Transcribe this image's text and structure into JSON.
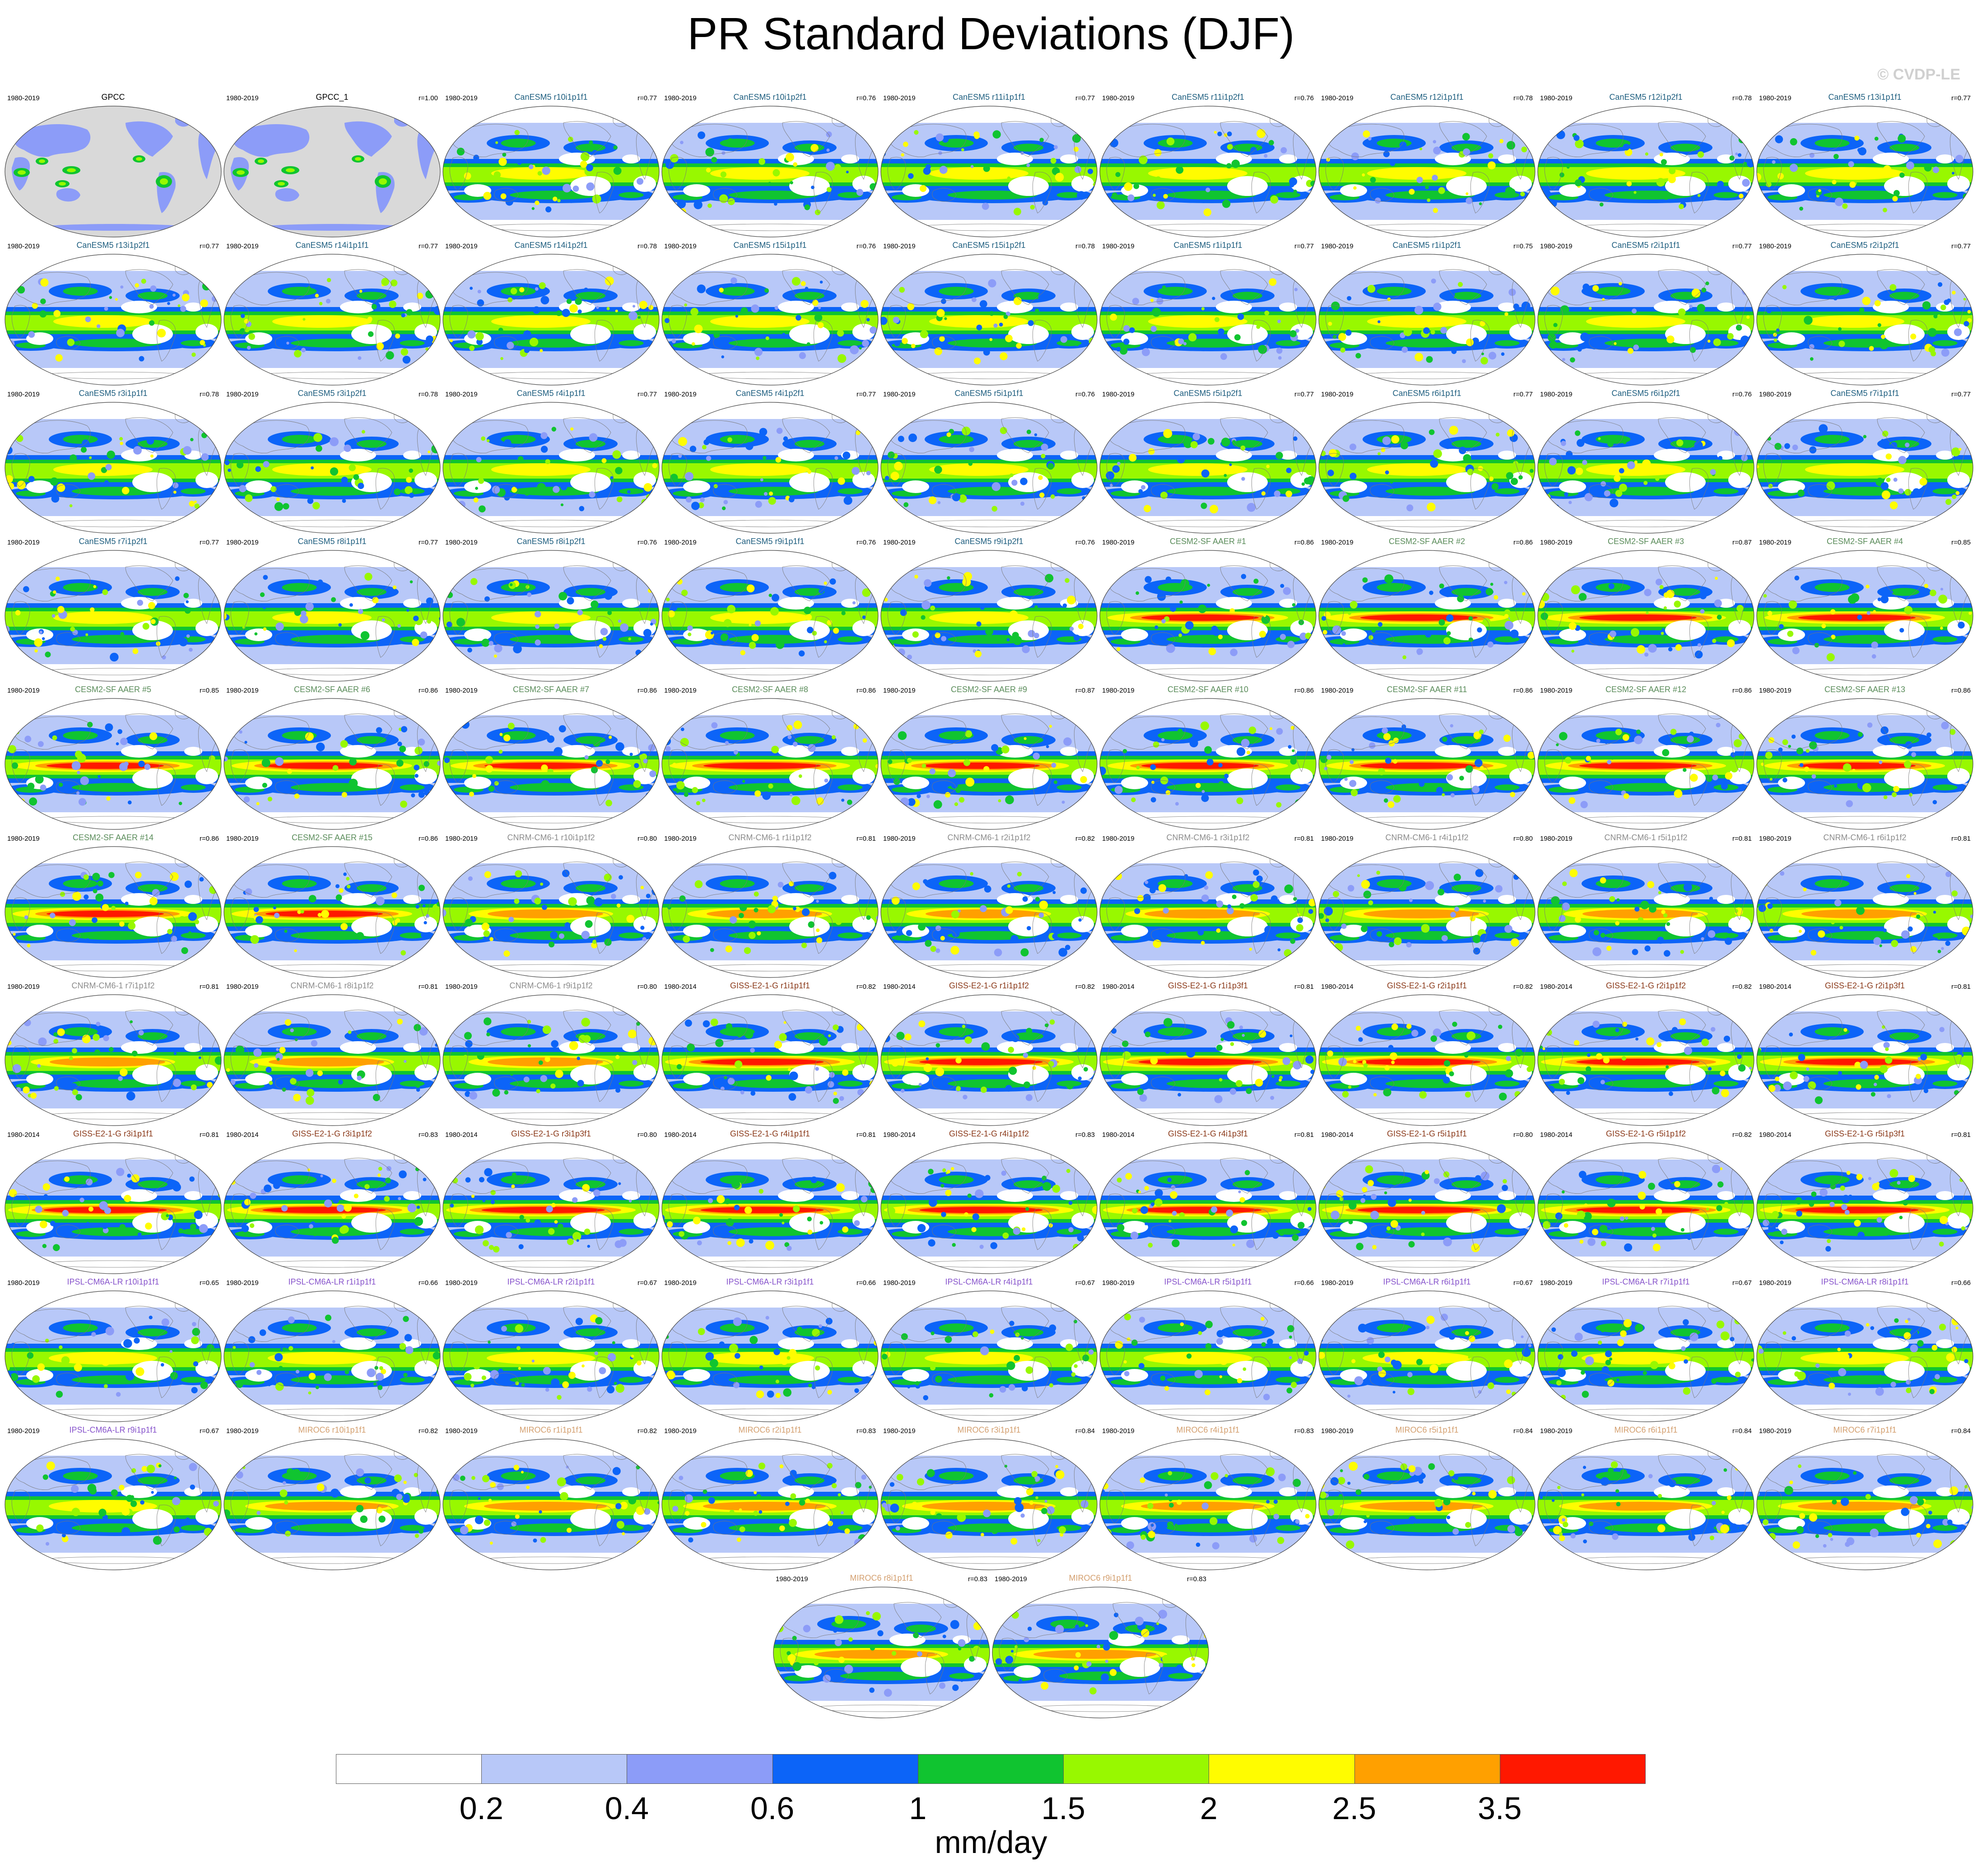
{
  "title": "PR Standard Deviations (DJF)",
  "watermark": "© CVDP-LE",
  "colors": {
    "land_background": "#d9d9d9",
    "name_colors": {
      "obs": "#000000",
      "CanESM5": "#1f5f80",
      "CESM2-SF AAER": "#5a8c5a",
      "CNRM-CM6-1": "#8c8c8c",
      "GISS-E2-1-G": "#8b3a1a",
      "IPSL-CM6A-LR": "#8855cc",
      "MIROC6": "#d4a070"
    }
  },
  "chart_data": {
    "type": "heatmap",
    "variable": "PR",
    "season": "DJF",
    "units": "mm/day",
    "colorbar": {
      "levels": [
        "0.2",
        "0.4",
        "0.6",
        "1",
        "1.5",
        "2",
        "2.5",
        "3.5"
      ],
      "colors": [
        "#ffffff",
        "#b8c8f8",
        "#8c9cf8",
        "#0c64f8",
        "#10c430",
        "#98f800",
        "#fffc00",
        "#ffa000",
        "#ff1800"
      ]
    },
    "panels": [
      {
        "name": "GPCC",
        "period": "1980-2019",
        "r": "",
        "group": "obs",
        "obs": true
      },
      {
        "name": "GPCC_1",
        "period": "1980-2019",
        "r": "r=1.00",
        "group": "obs",
        "obs": true
      },
      {
        "name": "CanESM5 r10i1p1f1",
        "period": "1980-2019",
        "r": "r=0.77",
        "group": "CanESM5"
      },
      {
        "name": "CanESM5 r10i1p2f1",
        "period": "1980-2019",
        "r": "r=0.76",
        "group": "CanESM5"
      },
      {
        "name": "CanESM5 r11i1p1f1",
        "period": "1980-2019",
        "r": "r=0.77",
        "group": "CanESM5"
      },
      {
        "name": "CanESM5 r11i1p2f1",
        "period": "1980-2019",
        "r": "r=0.76",
        "group": "CanESM5"
      },
      {
        "name": "CanESM5 r12i1p1f1",
        "period": "1980-2019",
        "r": "r=0.78",
        "group": "CanESM5"
      },
      {
        "name": "CanESM5 r12i1p2f1",
        "period": "1980-2019",
        "r": "r=0.78",
        "group": "CanESM5"
      },
      {
        "name": "CanESM5 r13i1p1f1",
        "period": "1980-2019",
        "r": "r=0.77",
        "group": "CanESM5"
      },
      {
        "name": "CanESM5 r13i1p2f1",
        "period": "1980-2019",
        "r": "r=0.77",
        "group": "CanESM5"
      },
      {
        "name": "CanESM5 r14i1p1f1",
        "period": "1980-2019",
        "r": "r=0.77",
        "group": "CanESM5"
      },
      {
        "name": "CanESM5 r14i1p2f1",
        "period": "1980-2019",
        "r": "r=0.78",
        "group": "CanESM5"
      },
      {
        "name": "CanESM5 r15i1p1f1",
        "period": "1980-2019",
        "r": "r=0.76",
        "group": "CanESM5"
      },
      {
        "name": "CanESM5 r15i1p2f1",
        "period": "1980-2019",
        "r": "r=0.78",
        "group": "CanESM5"
      },
      {
        "name": "CanESM5 r1i1p1f1",
        "period": "1980-2019",
        "r": "r=0.77",
        "group": "CanESM5"
      },
      {
        "name": "CanESM5 r1i1p2f1",
        "period": "1980-2019",
        "r": "r=0.75",
        "group": "CanESM5"
      },
      {
        "name": "CanESM5 r2i1p1f1",
        "period": "1980-2019",
        "r": "r=0.77",
        "group": "CanESM5"
      },
      {
        "name": "CanESM5 r2i1p2f1",
        "period": "1980-2019",
        "r": "r=0.77",
        "group": "CanESM5"
      },
      {
        "name": "CanESM5 r3i1p1f1",
        "period": "1980-2019",
        "r": "r=0.78",
        "group": "CanESM5"
      },
      {
        "name": "CanESM5 r3i1p2f1",
        "period": "1980-2019",
        "r": "r=0.78",
        "group": "CanESM5"
      },
      {
        "name": "CanESM5 r4i1p1f1",
        "period": "1980-2019",
        "r": "r=0.77",
        "group": "CanESM5"
      },
      {
        "name": "CanESM5 r4i1p2f1",
        "period": "1980-2019",
        "r": "r=0.77",
        "group": "CanESM5"
      },
      {
        "name": "CanESM5 r5i1p1f1",
        "period": "1980-2019",
        "r": "r=0.76",
        "group": "CanESM5"
      },
      {
        "name": "CanESM5 r5i1p2f1",
        "period": "1980-2019",
        "r": "r=0.77",
        "group": "CanESM5"
      },
      {
        "name": "CanESM5 r6i1p1f1",
        "period": "1980-2019",
        "r": "r=0.77",
        "group": "CanESM5"
      },
      {
        "name": "CanESM5 r6i1p2f1",
        "period": "1980-2019",
        "r": "r=0.76",
        "group": "CanESM5"
      },
      {
        "name": "CanESM5 r7i1p1f1",
        "period": "1980-2019",
        "r": "r=0.77",
        "group": "CanESM5"
      },
      {
        "name": "CanESM5 r7i1p2f1",
        "period": "1980-2019",
        "r": "r=0.77",
        "group": "CanESM5"
      },
      {
        "name": "CanESM5 r8i1p1f1",
        "period": "1980-2019",
        "r": "r=0.77",
        "group": "CanESM5"
      },
      {
        "name": "CanESM5 r8i1p2f1",
        "period": "1980-2019",
        "r": "r=0.76",
        "group": "CanESM5"
      },
      {
        "name": "CanESM5 r9i1p1f1",
        "period": "1980-2019",
        "r": "r=0.76",
        "group": "CanESM5"
      },
      {
        "name": "CanESM5 r9i1p2f1",
        "period": "1980-2019",
        "r": "r=0.76",
        "group": "CanESM5"
      },
      {
        "name": "CESM2-SF AAER #1",
        "period": "1980-2019",
        "r": "r=0.86",
        "group": "CESM2-SF AAER"
      },
      {
        "name": "CESM2-SF AAER #2",
        "period": "1980-2019",
        "r": "r=0.86",
        "group": "CESM2-SF AAER"
      },
      {
        "name": "CESM2-SF AAER #3",
        "period": "1980-2019",
        "r": "r=0.87",
        "group": "CESM2-SF AAER"
      },
      {
        "name": "CESM2-SF AAER #4",
        "period": "1980-2019",
        "r": "r=0.85",
        "group": "CESM2-SF AAER"
      },
      {
        "name": "CESM2-SF AAER #5",
        "period": "1980-2019",
        "r": "r=0.85",
        "group": "CESM2-SF AAER"
      },
      {
        "name": "CESM2-SF AAER #6",
        "period": "1980-2019",
        "r": "r=0.86",
        "group": "CESM2-SF AAER"
      },
      {
        "name": "CESM2-SF AAER #7",
        "period": "1980-2019",
        "r": "r=0.86",
        "group": "CESM2-SF AAER"
      },
      {
        "name": "CESM2-SF AAER #8",
        "period": "1980-2019",
        "r": "r=0.86",
        "group": "CESM2-SF AAER"
      },
      {
        "name": "CESM2-SF AAER #9",
        "period": "1980-2019",
        "r": "r=0.87",
        "group": "CESM2-SF AAER"
      },
      {
        "name": "CESM2-SF AAER #10",
        "period": "1980-2019",
        "r": "r=0.86",
        "group": "CESM2-SF AAER"
      },
      {
        "name": "CESM2-SF AAER #11",
        "period": "1980-2019",
        "r": "r=0.86",
        "group": "CESM2-SF AAER"
      },
      {
        "name": "CESM2-SF AAER #12",
        "period": "1980-2019",
        "r": "r=0.86",
        "group": "CESM2-SF AAER"
      },
      {
        "name": "CESM2-SF AAER #13",
        "period": "1980-2019",
        "r": "r=0.86",
        "group": "CESM2-SF AAER"
      },
      {
        "name": "CESM2-SF AAER #14",
        "period": "1980-2019",
        "r": "r=0.86",
        "group": "CESM2-SF AAER"
      },
      {
        "name": "CESM2-SF AAER #15",
        "period": "1980-2019",
        "r": "r=0.86",
        "group": "CESM2-SF AAER"
      },
      {
        "name": "CNRM-CM6-1 r10i1p1f2",
        "period": "1980-2019",
        "r": "r=0.80",
        "group": "CNRM-CM6-1"
      },
      {
        "name": "CNRM-CM6-1 r1i1p1f2",
        "period": "1980-2019",
        "r": "r=0.81",
        "group": "CNRM-CM6-1"
      },
      {
        "name": "CNRM-CM6-1 r2i1p1f2",
        "period": "1980-2019",
        "r": "r=0.82",
        "group": "CNRM-CM6-1"
      },
      {
        "name": "CNRM-CM6-1 r3i1p1f2",
        "period": "1980-2019",
        "r": "r=0.81",
        "group": "CNRM-CM6-1"
      },
      {
        "name": "CNRM-CM6-1 r4i1p1f2",
        "period": "1980-2019",
        "r": "r=0.80",
        "group": "CNRM-CM6-1"
      },
      {
        "name": "CNRM-CM6-1 r5i1p1f2",
        "period": "1980-2019",
        "r": "r=0.81",
        "group": "CNRM-CM6-1"
      },
      {
        "name": "CNRM-CM6-1 r6i1p1f2",
        "period": "1980-2019",
        "r": "r=0.81",
        "group": "CNRM-CM6-1"
      },
      {
        "name": "CNRM-CM6-1 r7i1p1f2",
        "period": "1980-2019",
        "r": "r=0.81",
        "group": "CNRM-CM6-1"
      },
      {
        "name": "CNRM-CM6-1 r8i1p1f2",
        "period": "1980-2019",
        "r": "r=0.81",
        "group": "CNRM-CM6-1"
      },
      {
        "name": "CNRM-CM6-1 r9i1p1f2",
        "period": "1980-2019",
        "r": "r=0.80",
        "group": "CNRM-CM6-1"
      },
      {
        "name": "GISS-E2-1-G r1i1p1f1",
        "period": "1980-2014",
        "r": "r=0.82",
        "group": "GISS-E2-1-G"
      },
      {
        "name": "GISS-E2-1-G r1i1p1f2",
        "period": "1980-2014",
        "r": "r=0.82",
        "group": "GISS-E2-1-G"
      },
      {
        "name": "GISS-E2-1-G r1i1p3f1",
        "period": "1980-2014",
        "r": "r=0.81",
        "group": "GISS-E2-1-G"
      },
      {
        "name": "GISS-E2-1-G r2i1p1f1",
        "period": "1980-2014",
        "r": "r=0.82",
        "group": "GISS-E2-1-G"
      },
      {
        "name": "GISS-E2-1-G r2i1p1f2",
        "period": "1980-2014",
        "r": "r=0.82",
        "group": "GISS-E2-1-G"
      },
      {
        "name": "GISS-E2-1-G r2i1p3f1",
        "period": "1980-2014",
        "r": "r=0.81",
        "group": "GISS-E2-1-G"
      },
      {
        "name": "GISS-E2-1-G r3i1p1f1",
        "period": "1980-2014",
        "r": "r=0.81",
        "group": "GISS-E2-1-G"
      },
      {
        "name": "GISS-E2-1-G r3i1p1f2",
        "period": "1980-2014",
        "r": "r=0.83",
        "group": "GISS-E2-1-G"
      },
      {
        "name": "GISS-E2-1-G r3i1p3f1",
        "period": "1980-2014",
        "r": "r=0.80",
        "group": "GISS-E2-1-G"
      },
      {
        "name": "GISS-E2-1-G r4i1p1f1",
        "period": "1980-2014",
        "r": "r=0.81",
        "group": "GISS-E2-1-G"
      },
      {
        "name": "GISS-E2-1-G r4i1p1f2",
        "period": "1980-2014",
        "r": "r=0.83",
        "group": "GISS-E2-1-G"
      },
      {
        "name": "GISS-E2-1-G r4i1p3f1",
        "period": "1980-2014",
        "r": "r=0.81",
        "group": "GISS-E2-1-G"
      },
      {
        "name": "GISS-E2-1-G r5i1p1f1",
        "period": "1980-2014",
        "r": "r=0.80",
        "group": "GISS-E2-1-G"
      },
      {
        "name": "GISS-E2-1-G r5i1p1f2",
        "period": "1980-2014",
        "r": "r=0.82",
        "group": "GISS-E2-1-G"
      },
      {
        "name": "GISS-E2-1-G r5i1p3f1",
        "period": "1980-2014",
        "r": "r=0.81",
        "group": "GISS-E2-1-G"
      },
      {
        "name": "IPSL-CM6A-LR r10i1p1f1",
        "period": "1980-2019",
        "r": "r=0.65",
        "group": "IPSL-CM6A-LR"
      },
      {
        "name": "IPSL-CM6A-LR r1i1p1f1",
        "period": "1980-2019",
        "r": "r=0.66",
        "group": "IPSL-CM6A-LR"
      },
      {
        "name": "IPSL-CM6A-LR r2i1p1f1",
        "period": "1980-2019",
        "r": "r=0.67",
        "group": "IPSL-CM6A-LR"
      },
      {
        "name": "IPSL-CM6A-LR r3i1p1f1",
        "period": "1980-2019",
        "r": "r=0.66",
        "group": "IPSL-CM6A-LR"
      },
      {
        "name": "IPSL-CM6A-LR r4i1p1f1",
        "period": "1980-2019",
        "r": "r=0.67",
        "group": "IPSL-CM6A-LR"
      },
      {
        "name": "IPSL-CM6A-LR r5i1p1f1",
        "period": "1980-2019",
        "r": "r=0.66",
        "group": "IPSL-CM6A-LR"
      },
      {
        "name": "IPSL-CM6A-LR r6i1p1f1",
        "period": "1980-2019",
        "r": "r=0.67",
        "group": "IPSL-CM6A-LR"
      },
      {
        "name": "IPSL-CM6A-LR r7i1p1f1",
        "period": "1980-2019",
        "r": "r=0.67",
        "group": "IPSL-CM6A-LR"
      },
      {
        "name": "IPSL-CM6A-LR r8i1p1f1",
        "period": "1980-2019",
        "r": "r=0.66",
        "group": "IPSL-CM6A-LR"
      },
      {
        "name": "IPSL-CM6A-LR r9i1p1f1",
        "period": "1980-2019",
        "r": "r=0.67",
        "group": "IPSL-CM6A-LR"
      },
      {
        "name": "MIROC6 r10i1p1f1",
        "period": "1980-2019",
        "r": "r=0.82",
        "group": "MIROC6"
      },
      {
        "name": "MIROC6 r1i1p1f1",
        "period": "1980-2019",
        "r": "r=0.82",
        "group": "MIROC6"
      },
      {
        "name": "MIROC6 r2i1p1f1",
        "period": "1980-2019",
        "r": "r=0.83",
        "group": "MIROC6"
      },
      {
        "name": "MIROC6 r3i1p1f1",
        "period": "1980-2019",
        "r": "r=0.84",
        "group": "MIROC6"
      },
      {
        "name": "MIROC6 r4i1p1f1",
        "period": "1980-2019",
        "r": "r=0.83",
        "group": "MIROC6"
      },
      {
        "name": "MIROC6 r5i1p1f1",
        "period": "1980-2019",
        "r": "r=0.84",
        "group": "MIROC6"
      },
      {
        "name": "MIROC6 r6i1p1f1",
        "period": "1980-2019",
        "r": "r=0.84",
        "group": "MIROC6"
      },
      {
        "name": "MIROC6 r7i1p1f1",
        "period": "1980-2019",
        "r": "r=0.84",
        "group": "MIROC6"
      },
      {
        "name": "MIROC6 r8i1p1f1",
        "period": "1980-2019",
        "r": "r=0.83",
        "group": "MIROC6"
      },
      {
        "name": "MIROC6 r9i1p1f1",
        "period": "1980-2019",
        "r": "r=0.83",
        "group": "MIROC6"
      }
    ]
  }
}
